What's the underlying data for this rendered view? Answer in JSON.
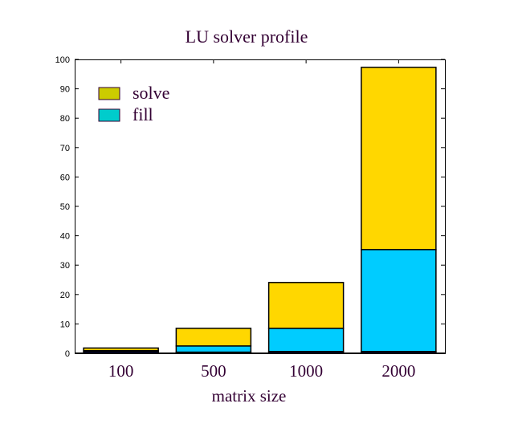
{
  "chart_data": {
    "type": "bar",
    "stacked": true,
    "title": "LU solver profile",
    "xlabel": "matrix size",
    "ylabel": "",
    "categories": [
      "100",
      "500",
      "1000",
      "2000"
    ],
    "ylim": [
      0,
      100
    ],
    "yticks": [
      "0",
      "10",
      "20",
      "30",
      "40",
      "50",
      "60",
      "70",
      "80",
      "90",
      "100"
    ],
    "grid": false,
    "legend": "top-left",
    "series": [
      {
        "values": [
          0.6,
          0.4,
          0.6,
          0.6
        ],
        "color": "#000066"
      },
      {
        "name": "fill",
        "values": [
          0.3,
          2.1,
          7.9,
          34.7
        ],
        "color": "#00ccff",
        "legend_color": "#00cccc"
      },
      {
        "name": "solve",
        "values": [
          0.9,
          6.0,
          15.6,
          62.0
        ],
        "color": "#ffd700",
        "legend_color": "#cccc00"
      }
    ]
  }
}
